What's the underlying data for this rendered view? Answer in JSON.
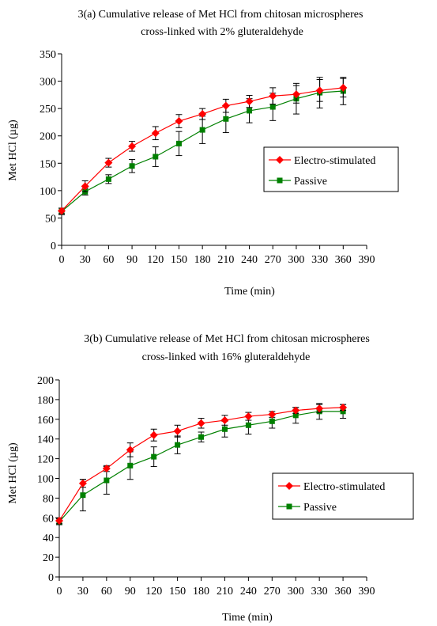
{
  "chart_data": [
    {
      "type": "line",
      "title_line1": "3(a)    Cumulative release of Met HCl from chitosan microspheres",
      "title_line2": "cross-linked with 2%  gluteraldehyde",
      "xlabel": "Time (min)",
      "ylabel": "Met HCl (µg)",
      "xlim": [
        0,
        390
      ],
      "ylim": [
        0,
        350
      ],
      "x_ticks": [
        0,
        30,
        60,
        90,
        120,
        150,
        180,
        210,
        240,
        270,
        300,
        330,
        360,
        390
      ],
      "y_ticks": [
        0,
        50,
        100,
        150,
        200,
        250,
        300,
        350
      ],
      "legend_position": "center-right",
      "x": [
        0,
        30,
        60,
        90,
        120,
        150,
        180,
        210,
        240,
        270,
        300,
        330,
        360
      ],
      "series": [
        {
          "name": "Electro-stimulated",
          "color": "#ff0000",
          "marker": "diamond",
          "values": [
            63,
            108,
            151,
            181,
            205,
            227,
            240,
            255,
            263,
            273,
            276,
            283,
            288
          ],
          "errors": [
            5,
            10,
            8,
            9,
            12,
            12,
            10,
            12,
            11,
            15,
            16,
            20,
            17
          ]
        },
        {
          "name": "Passive",
          "color": "#008000",
          "marker": "square",
          "values": [
            62,
            98,
            121,
            145,
            162,
            186,
            211,
            231,
            246,
            253,
            268,
            279,
            282
          ],
          "errors": [
            6,
            6,
            8,
            12,
            18,
            22,
            25,
            25,
            22,
            25,
            28,
            28,
            25
          ]
        }
      ]
    },
    {
      "type": "line",
      "title_line1": "3(b)    Cumulative release of Met HCl from chitosan microspheres",
      "title_line2": "cross-linked with 16% gluteraldehyde",
      "xlabel": "Time (min)",
      "ylabel": "Met HCl (µg)",
      "xlim": [
        0,
        390
      ],
      "ylim": [
        0,
        200
      ],
      "x_ticks": [
        0,
        30,
        60,
        90,
        120,
        150,
        180,
        210,
        240,
        270,
        300,
        330,
        360,
        390
      ],
      "y_ticks": [
        0,
        20,
        40,
        60,
        80,
        100,
        120,
        140,
        160,
        180,
        200
      ],
      "legend_position": "center-right",
      "x": [
        0,
        30,
        60,
        90,
        120,
        150,
        180,
        210,
        240,
        270,
        300,
        330,
        360
      ],
      "series": [
        {
          "name": "Electro-stimulated",
          "color": "#ff0000",
          "marker": "diamond",
          "values": [
            57,
            95,
            110,
            129,
            144,
            148,
            156,
            159,
            163,
            165,
            169,
            171,
            172
          ],
          "errors": [
            3,
            4,
            3,
            7,
            6,
            6,
            5,
            5,
            4,
            3,
            3,
            4,
            3
          ]
        },
        {
          "name": "Passive",
          "color": "#008000",
          "marker": "square",
          "values": [
            56,
            83,
            98,
            113,
            122,
            134,
            142,
            150,
            154,
            158,
            164,
            168,
            168
          ],
          "errors": [
            3,
            16,
            14,
            14,
            10,
            9,
            5,
            8,
            9,
            7,
            8,
            8,
            7
          ]
        }
      ]
    }
  ]
}
